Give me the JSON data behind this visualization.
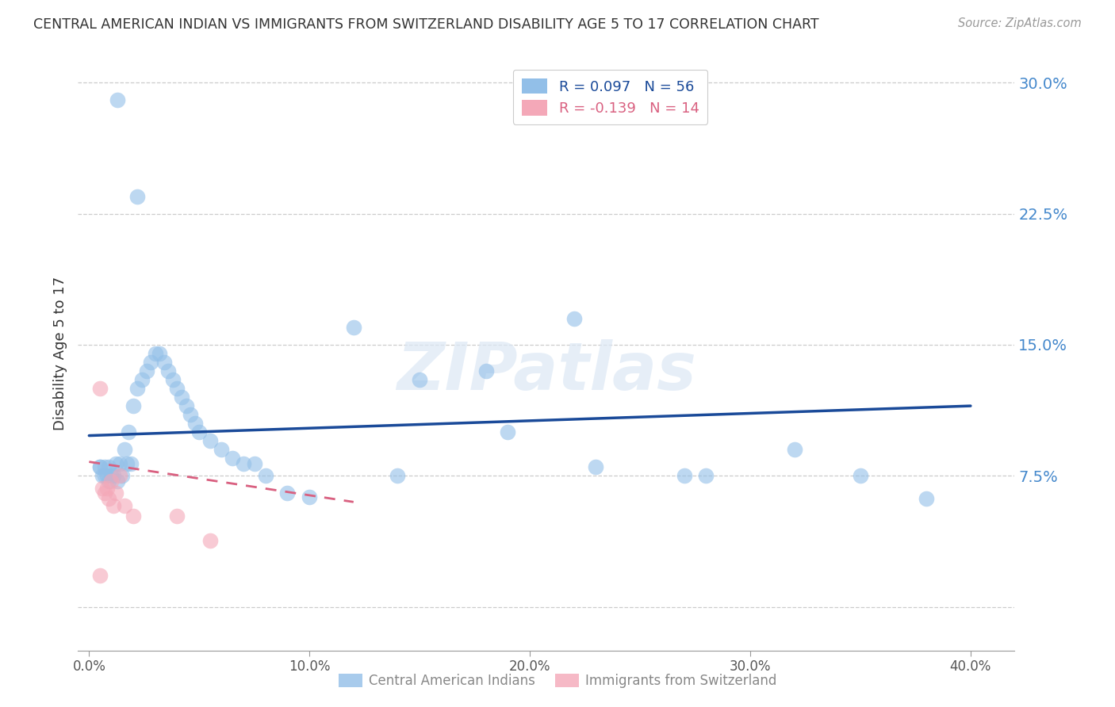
{
  "title": "CENTRAL AMERICAN INDIAN VS IMMIGRANTS FROM SWITZERLAND DISABILITY AGE 5 TO 17 CORRELATION CHART",
  "source": "Source: ZipAtlas.com",
  "ylabel": "Disability Age 5 to 17",
  "yticks": [
    0.0,
    0.075,
    0.15,
    0.225,
    0.3
  ],
  "ytick_labels": [
    "",
    "7.5%",
    "15.0%",
    "22.5%",
    "30.0%"
  ],
  "xticks": [
    0.0,
    0.1,
    0.2,
    0.3,
    0.4
  ],
  "xtick_labels": [
    "0.0%",
    "10.0%",
    "20.0%",
    "30.0%",
    "40.0%"
  ],
  "xlim": [
    -0.005,
    0.42
  ],
  "ylim": [
    -0.025,
    0.315
  ],
  "blue_color": "#92bfe8",
  "pink_color": "#f4a8b8",
  "line_blue": "#1a4a99",
  "line_pink": "#d96080",
  "watermark_text": "ZIPatlas",
  "blue_scatter_x": [
    0.013,
    0.022,
    0.005,
    0.006,
    0.007,
    0.008,
    0.009,
    0.01,
    0.012,
    0.014,
    0.016,
    0.018,
    0.02,
    0.022,
    0.024,
    0.026,
    0.028,
    0.03,
    0.032,
    0.034,
    0.036,
    0.038,
    0.04,
    0.042,
    0.044,
    0.046,
    0.048,
    0.05,
    0.055,
    0.06,
    0.065,
    0.07,
    0.075,
    0.08,
    0.09,
    0.1,
    0.12,
    0.14,
    0.15,
    0.18,
    0.19,
    0.22,
    0.23,
    0.27,
    0.28,
    0.32,
    0.35,
    0.38,
    0.005,
    0.007,
    0.009,
    0.011,
    0.013,
    0.015,
    0.017,
    0.019
  ],
  "blue_scatter_y": [
    0.29,
    0.235,
    0.08,
    0.075,
    0.08,
    0.075,
    0.072,
    0.075,
    0.082,
    0.082,
    0.09,
    0.1,
    0.115,
    0.125,
    0.13,
    0.135,
    0.14,
    0.145,
    0.145,
    0.14,
    0.135,
    0.13,
    0.125,
    0.12,
    0.115,
    0.11,
    0.105,
    0.1,
    0.095,
    0.09,
    0.085,
    0.082,
    0.082,
    0.075,
    0.065,
    0.063,
    0.16,
    0.075,
    0.13,
    0.135,
    0.1,
    0.165,
    0.08,
    0.075,
    0.075,
    0.09,
    0.075,
    0.062,
    0.08,
    0.075,
    0.08,
    0.075,
    0.072,
    0.075,
    0.082,
    0.082
  ],
  "pink_scatter_x": [
    0.005,
    0.006,
    0.007,
    0.008,
    0.009,
    0.01,
    0.011,
    0.012,
    0.014,
    0.016,
    0.02,
    0.04,
    0.055,
    0.005
  ],
  "pink_scatter_y": [
    0.125,
    0.068,
    0.065,
    0.068,
    0.062,
    0.072,
    0.058,
    0.065,
    0.075,
    0.058,
    0.052,
    0.052,
    0.038,
    0.018
  ],
  "blue_line_x": [
    0.0,
    0.4
  ],
  "blue_line_y": [
    0.098,
    0.115
  ],
  "pink_line_x": [
    0.0,
    0.12
  ],
  "pink_line_y": [
    0.083,
    0.06
  ],
  "legend1_text": "R = 0.097   N = 56",
  "legend2_text": "R = -0.139   N = 14",
  "bottom_label1": "Central American Indians",
  "bottom_label2": "Immigrants from Switzerland"
}
